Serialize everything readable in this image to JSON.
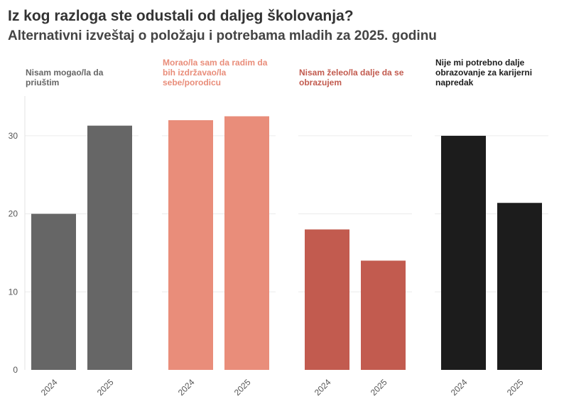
{
  "header": {
    "title": "Iz kog razloga ste odustali od daljeg školovanja?",
    "subtitle": "Alternativni izveštaj o položaju i potrebama mladih za 2025. godinu"
  },
  "chart_data": {
    "type": "bar",
    "title": "Iz kog razloga ste odustali od daljeg školovanja?",
    "subtitle": "Alternativni izveštaj o položaju i potrebama mladih za 2025. godinu",
    "categories": [
      "2024",
      "2025"
    ],
    "ylim": [
      0,
      35
    ],
    "yticks": [
      0,
      10,
      20,
      30
    ],
    "grid": true,
    "facets": [
      {
        "label_lines": [
          "Nisam mogao/la da",
          "priuštim"
        ],
        "color": "#666666",
        "values": [
          20.0,
          31.3
        ]
      },
      {
        "label_lines": [
          "Morao/la sam da radim da",
          "bih izdržavao/la",
          "sebe/porodicu"
        ],
        "color": "#e98d7a",
        "values": [
          32.0,
          32.5
        ]
      },
      {
        "label_lines": [
          "Nisam želeo/la dalje da se",
          "obrazujem"
        ],
        "color": "#c25b4f",
        "values": [
          18.0,
          14.0
        ]
      },
      {
        "label_lines": [
          "Nije mi potrebno dalje",
          "obrazovanje za karijerni",
          "napredak"
        ],
        "color": "#1c1c1c",
        "values": [
          30.0,
          21.4
        ]
      }
    ]
  }
}
